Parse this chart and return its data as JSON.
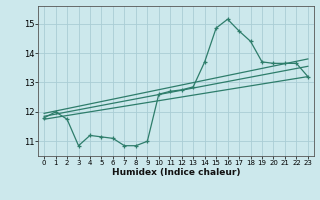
{
  "xlabel": "Humidex (Indice chaleur)",
  "bg_color": "#cce8ec",
  "line_color": "#2e7d6b",
  "grid_color": "#aacdd5",
  "x_ticks": [
    0,
    1,
    2,
    3,
    4,
    5,
    6,
    7,
    8,
    9,
    10,
    11,
    12,
    13,
    14,
    15,
    16,
    17,
    18,
    19,
    20,
    21,
    22,
    23
  ],
  "y_ticks": [
    11,
    12,
    13,
    14,
    15
  ],
  "ylim": [
    10.5,
    15.6
  ],
  "xlim": [
    -0.5,
    23.5
  ],
  "series1_x": [
    0,
    1,
    2,
    3,
    4,
    5,
    6,
    7,
    8,
    9,
    10,
    11,
    12,
    13,
    14,
    15,
    16,
    17,
    18,
    19,
    20,
    21,
    22,
    23
  ],
  "series1_y": [
    11.8,
    12.0,
    11.75,
    10.85,
    11.2,
    11.15,
    11.1,
    10.85,
    10.85,
    11.0,
    12.6,
    12.7,
    12.75,
    12.85,
    13.7,
    14.85,
    15.15,
    14.75,
    14.4,
    13.7,
    13.65,
    13.65,
    13.65,
    13.2
  ],
  "trend1_x0": 0,
  "trend1_y0": 11.75,
  "trend1_x1": 23,
  "trend1_y1": 13.2,
  "trend2_x0": 0,
  "trend2_y0": 11.85,
  "trend2_x1": 23,
  "trend2_y1": 13.55,
  "trend3_x0": 0,
  "trend3_y0": 11.95,
  "trend3_x1": 23,
  "trend3_y1": 13.8
}
